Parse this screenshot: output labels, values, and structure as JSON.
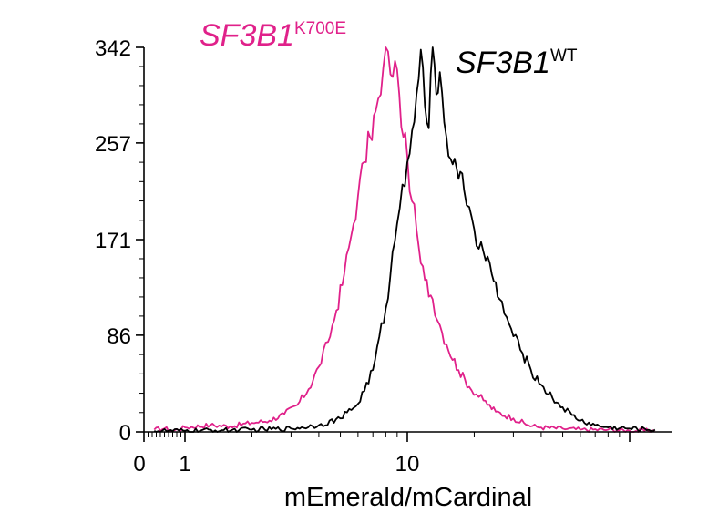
{
  "chart_data": {
    "type": "line",
    "title": "",
    "xlabel": "mEmerald/mCardinal",
    "ylabel": "",
    "x_scale": "log",
    "x_tick_labels": [
      "0",
      "1",
      "10"
    ],
    "y_ticks": [
      0,
      86,
      171,
      257,
      342
    ],
    "ylim": [
      0,
      342
    ],
    "series": [
      {
        "name": "SF3B1",
        "superscript": "K700E",
        "color": "#e0218a",
        "x": [
          0.25,
          0.5,
          0.7,
          1.0,
          1.3,
          1.6,
          2.0,
          2.4,
          2.8,
          3.2,
          3.6,
          4.0,
          4.4,
          4.8,
          5.2,
          5.6,
          6.0,
          6.4,
          6.8,
          7.2,
          7.6,
          8.0,
          8.4,
          8.8,
          9.2,
          9.6,
          10.0,
          10.5,
          11.0,
          11.5,
          12.0,
          13.0,
          14.0,
          15.0,
          17.0,
          19.0,
          22.0,
          25.0,
          30.0,
          35.0,
          40.0,
          50.0,
          60.0,
          80.0,
          100.0,
          130.0
        ],
        "values": [
          2,
          3,
          1,
          4,
          6,
          5,
          8,
          10,
          16,
          24,
          38,
          58,
          80,
          108,
          140,
          175,
          210,
          240,
          262,
          285,
          300,
          342,
          318,
          330,
          300,
          262,
          245,
          205,
          180,
          150,
          135,
          118,
          95,
          78,
          55,
          40,
          28,
          18,
          12,
          6,
          4,
          3,
          2,
          2,
          1,
          1
        ]
      },
      {
        "name": "SF3B1",
        "superscript": "WT",
        "color": "#000000",
        "x": [
          0.25,
          0.6,
          1.0,
          2.0,
          3.0,
          4.0,
          5.0,
          6.0,
          7.0,
          8.0,
          9.0,
          9.5,
          10.0,
          10.5,
          11.0,
          11.5,
          12.0,
          12.5,
          13.0,
          13.5,
          14.0,
          15.0,
          16.0,
          17.0,
          18.0,
          19.0,
          20.0,
          22.0,
          24.0,
          26.0,
          28.0,
          30.0,
          33.0,
          36.0,
          40.0,
          45.0,
          50.0,
          55.0,
          60.0,
          70.0,
          80.0,
          100.0,
          130.0
        ],
        "values": [
          1,
          1,
          1,
          2,
          3,
          6,
          12,
          25,
          55,
          110,
          185,
          220,
          240,
          268,
          300,
          340,
          290,
          270,
          342,
          300,
          320,
          262,
          238,
          225,
          215,
          200,
          180,
          160,
          140,
          118,
          102,
          85,
          70,
          55,
          42,
          30,
          22,
          15,
          10,
          6,
          4,
          3,
          2
        ]
      }
    ]
  }
}
